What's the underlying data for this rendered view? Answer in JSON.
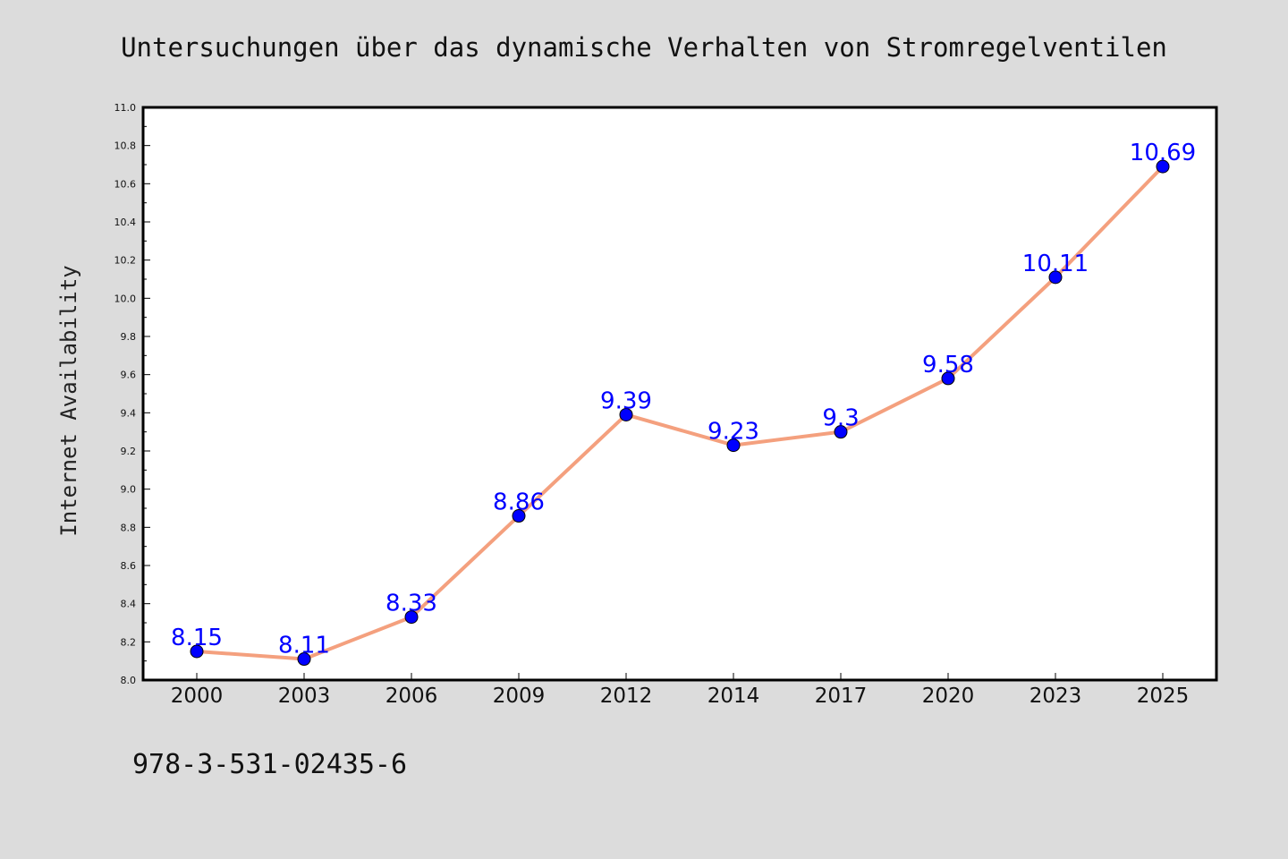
{
  "chart_data": {
    "type": "line",
    "title": "Untersuchungen über das dynamische Verhalten von Stromregelventilen",
    "xlabel": "",
    "ylabel": "Internet Availability",
    "categories": [
      "2000",
      "2003",
      "2006",
      "2009",
      "2012",
      "2014",
      "2017",
      "2020",
      "2023",
      "2025"
    ],
    "series": [
      {
        "values": [
          8.15,
          8.11,
          8.33,
          8.86,
          9.39,
          9.23,
          9.3,
          9.58,
          10.11,
          10.69
        ],
        "labels": [
          "8.15",
          "8.11",
          "8.33",
          "8.86",
          "9.39",
          "9.23",
          "9.3",
          "9.58",
          "10.11",
          "10.69"
        ],
        "line_color": "#f4a07e",
        "marker_color": "#0000ff"
      }
    ],
    "ylim": [
      8.0,
      11.0
    ],
    "yticks": [
      "8.0",
      "8.2",
      "8.4",
      "8.6",
      "8.8",
      "9.0",
      "9.2",
      "9.4",
      "9.6",
      "9.8",
      "10.0",
      "10.2",
      "10.4",
      "10.6",
      "10.8",
      "11.0"
    ],
    "grid": false,
    "legend": "none"
  },
  "footnote": "978-3-531-02435-6",
  "colors": {
    "background": "#dcdcdc",
    "plot_background": "#ffffff",
    "axis": "#000000"
  }
}
